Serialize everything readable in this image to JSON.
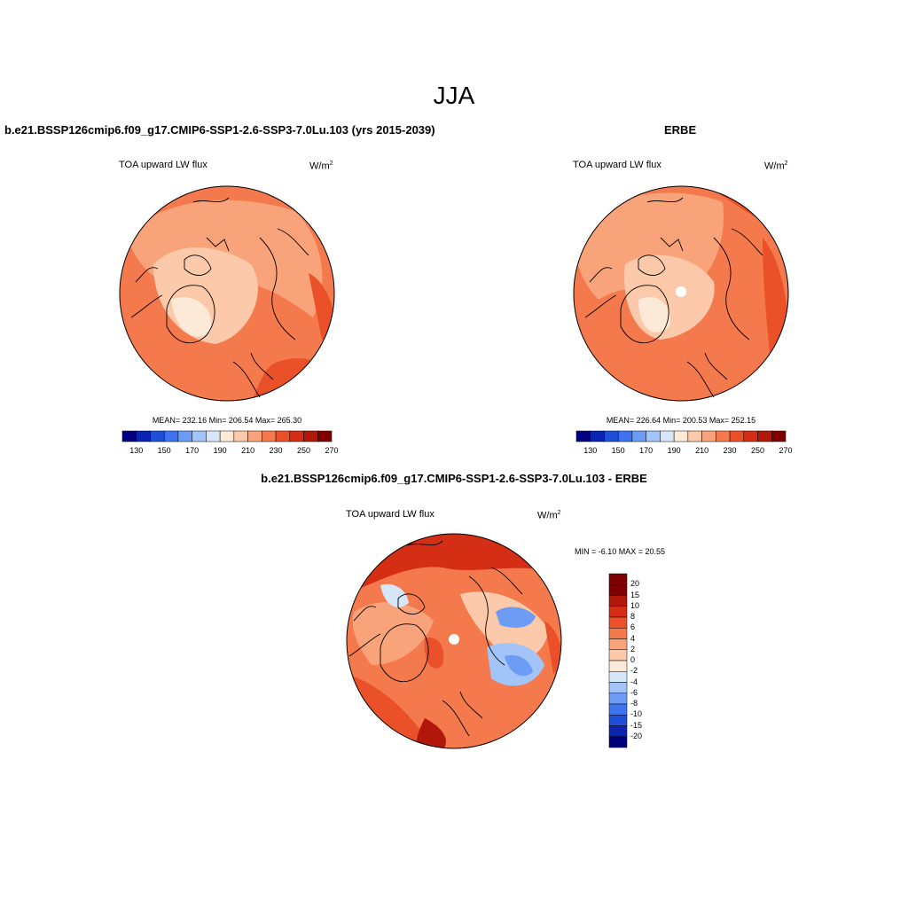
{
  "title": "JJA",
  "panels": [
    {
      "title": "b.e21.BSSP126cmip6.f09_g17.CMIP6-SSP1-2.6-SSP3-7.0Lu.103 (yrs 2015-2039)",
      "variable": "TOA upward LW flux",
      "units_base": "W/m",
      "units_exp": "2",
      "stats": "MEAN= 232.16  Min= 206.54  Max= 265.30",
      "colorbar_labels": [
        "130",
        "150",
        "170",
        "190",
        "210",
        "230",
        "250",
        "270"
      ]
    },
    {
      "title": "ERBE",
      "variable": "TOA upward LW flux",
      "units_base": "W/m",
      "units_exp": "2",
      "stats": "MEAN= 226.64  Min= 200.53  Max= 252.15",
      "colorbar_labels": [
        "130",
        "150",
        "170",
        "190",
        "210",
        "230",
        "250",
        "270"
      ]
    }
  ],
  "diff": {
    "title": "b.e21.BSSP126cmip6.f09_g17.CMIP6-SSP1-2.6-SSP3-7.0Lu.103 - ERBE",
    "variable": "TOA upward LW flux",
    "units_base": "W/m",
    "units_exp": "2",
    "minmax": "MIN =  -6.10 MAX =  20.55",
    "colorbar_labels": [
      "20",
      "15",
      "10",
      "8",
      "6",
      "4",
      "2",
      "0",
      "-2",
      "-4",
      "-6",
      "-8",
      "-10",
      "-15",
      "-20"
    ]
  },
  "colors": {
    "abs_scale": [
      "#00007f",
      "#0a23b0",
      "#1f4fd8",
      "#3b74ee",
      "#6d9cf5",
      "#a3c4f8",
      "#d6e7f9",
      "#fde9d7",
      "#fccaaa",
      "#f9a37a",
      "#f47a4d",
      "#ea5128",
      "#d42e14",
      "#b1170a",
      "#800000"
    ],
    "diff_scale": [
      "#800000",
      "#b1170a",
      "#d42e14",
      "#ea5128",
      "#f47a4d",
      "#f9a37a",
      "#fccaaa",
      "#fde9d7",
      "#d6e7f9",
      "#a3c4f8",
      "#6d9cf5",
      "#3b74ee",
      "#1f4fd8",
      "#0a23b0",
      "#00007f"
    ]
  }
}
